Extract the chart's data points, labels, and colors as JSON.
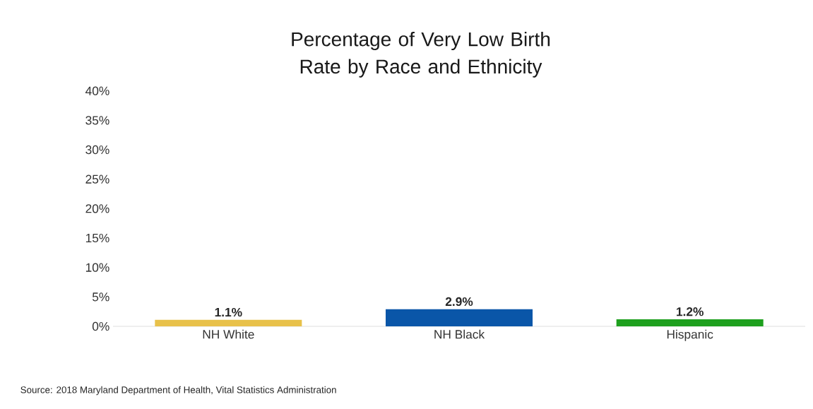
{
  "chart_data": {
    "type": "bar",
    "title": "Percentage of Very Low Birth Rate by Race and Ethnicity",
    "categories": [
      "NH White",
      "NH Black",
      "Hispanic"
    ],
    "values": [
      1.1,
      2.9,
      1.2
    ],
    "colors": [
      "#e8c14a",
      "#0a56a8",
      "#1ea01e"
    ],
    "value_labels": [
      "1.1%",
      "2.9%",
      "1.2%"
    ],
    "ylim": [
      0,
      40
    ],
    "yticks": [
      {
        "value": 0,
        "label": "0%"
      },
      {
        "value": 5,
        "label": "5%"
      },
      {
        "value": 10,
        "label": "10%"
      },
      {
        "value": 15,
        "label": "15%"
      },
      {
        "value": 20,
        "label": "20%"
      },
      {
        "value": 25,
        "label": "25%"
      },
      {
        "value": 30,
        "label": "30%"
      },
      {
        "value": 35,
        "label": "35%"
      },
      {
        "value": 40,
        "label": "40%"
      }
    ],
    "annotations": [
      "Source: 2018 Maryland Department of Health, Vital Statistics Administration"
    ]
  }
}
